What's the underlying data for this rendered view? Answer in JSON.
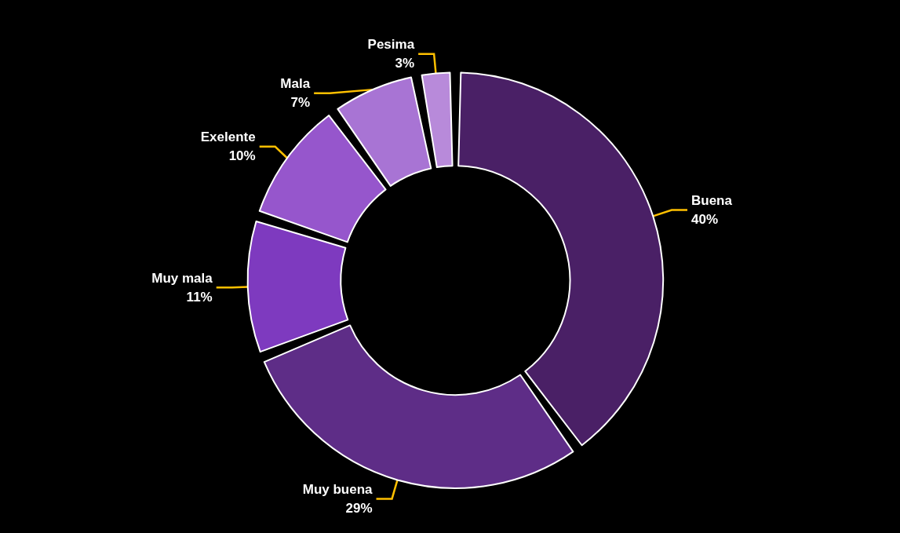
{
  "chart_data": {
    "type": "donut",
    "categories": [
      "Buena",
      "Muy buena",
      "Muy mala",
      "Exelente",
      "Mala",
      "Pesima"
    ],
    "values": [
      40,
      29,
      11,
      10,
      7,
      3
    ],
    "colors": [
      "#4a2066",
      "#5e2d87",
      "#7e3abf",
      "#9656cc",
      "#a874d4",
      "#b88ada"
    ],
    "value_labels": [
      "40%",
      "29%",
      "11%",
      "10%",
      "7%",
      "3%"
    ],
    "legend": false
  }
}
